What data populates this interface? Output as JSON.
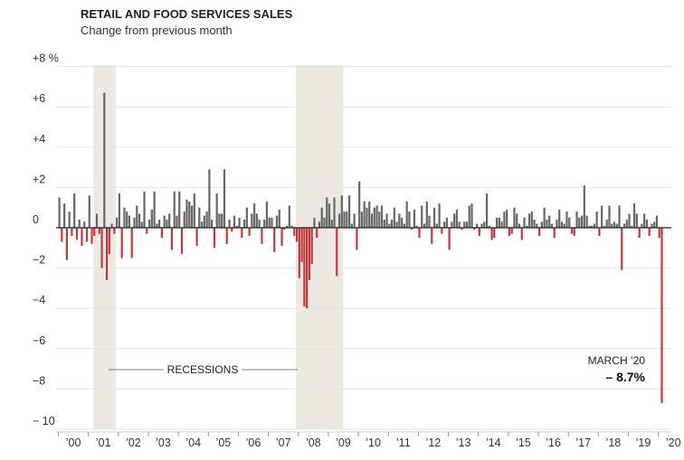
{
  "chart_data": {
    "type": "bar",
    "title": "RETAIL AND FOOD SERVICES SALES",
    "subtitle": "Change from previous month",
    "ylim": [
      -10,
      8
    ],
    "y_ticks": [
      {
        "value": 8,
        "label": "+8 %"
      },
      {
        "value": 6,
        "label": "+6"
      },
      {
        "value": 4,
        "label": "+4"
      },
      {
        "value": 2,
        "label": "+2"
      },
      {
        "value": 0,
        "label": "0"
      },
      {
        "value": -2,
        "label": "−2"
      },
      {
        "value": -4,
        "label": "−4"
      },
      {
        "value": -6,
        "label": "−6"
      },
      {
        "value": -8,
        "label": "−8"
      },
      {
        "value": -10,
        "label": "− 10"
      }
    ],
    "x_ticks": [
      {
        "year": 2000,
        "label": "’00"
      },
      {
        "year": 2001,
        "label": "’01"
      },
      {
        "year": 2002,
        "label": "’02"
      },
      {
        "year": 2003,
        "label": "’03"
      },
      {
        "year": 2004,
        "label": "’04"
      },
      {
        "year": 2005,
        "label": "’05"
      },
      {
        "year": 2006,
        "label": "’06"
      },
      {
        "year": 2007,
        "label": "’07"
      },
      {
        "year": 2008,
        "label": "’08"
      },
      {
        "year": 2009,
        "label": "’09"
      },
      {
        "year": 2010,
        "label": "’10"
      },
      {
        "year": 2011,
        "label": "’11"
      },
      {
        "year": 2012,
        "label": "’12"
      },
      {
        "year": 2013,
        "label": "’13"
      },
      {
        "year": 2014,
        "label": "’14"
      },
      {
        "year": 2015,
        "label": "’15"
      },
      {
        "year": 2016,
        "label": "’16"
      },
      {
        "year": 2017,
        "label": "’17"
      },
      {
        "year": 2018,
        "label": "’18"
      },
      {
        "year": 2019,
        "label": "’19"
      },
      {
        "year": 2020,
        "label": "’20"
      }
    ],
    "x_start": "2000-01",
    "recessions": [
      {
        "start": "2001-03",
        "end": "2001-11"
      },
      {
        "start": "2007-12",
        "end": "2009-06"
      }
    ],
    "recessions_label": "RECESSIONS",
    "annotation": {
      "label": "MARCH ’20",
      "value": "– 8.7%"
    },
    "colors": {
      "positive": "#666666",
      "negative": "#c0393f",
      "recession": "#ebe9e2",
      "grid": "#e6e6e6",
      "zero": "#222222"
    },
    "values": [
      1.5,
      -0.7,
      1.2,
      -1.6,
      0.8,
      -0.4,
      1.7,
      -0.6,
      0.4,
      -0.9,
      0.3,
      -0.7,
      1.6,
      -0.8,
      -0.4,
      0.7,
      -0.3,
      -2.0,
      6.7,
      -2.6,
      -1.3,
      0.2,
      -0.3,
      0.5,
      1.7,
      -1.5,
      1.0,
      0.8,
      0.6,
      -1.5,
      0.5,
      1.1,
      0.7,
      0.3,
      1.8,
      -0.3,
      0.4,
      0.9,
      1.8,
      0.2,
      0.4,
      -0.5,
      0.6,
      0.4,
      0.7,
      -1.1,
      1.8,
      0.6,
      1.8,
      -1.3,
      0.8,
      1.4,
      1.3,
      1.1,
      1.7,
      -0.9,
      1.0,
      0.3,
      0.6,
      0.8,
      2.9,
      0.4,
      -1.0,
      1.7,
      0.7,
      0.7,
      2.9,
      -0.8,
      0.4,
      -0.2,
      0.6,
      0.1,
      0.5,
      -0.5,
      0.4,
      1.0,
      -0.4,
      0.7,
      1.2,
      0.7,
      0.4,
      -0.8,
      0.4,
      1.3,
      0.5,
      0.5,
      -1.2,
      0.6,
      0.9,
      -0.9,
      -0.1,
      0.1,
      1.1,
      0.1,
      -0.4,
      -0.7,
      -2.5,
      -1.7,
      -3.9,
      -4.0,
      -2.6,
      -1.8,
      0.5,
      -0.5,
      0.3,
      1.0,
      0.5,
      1.5,
      1.2,
      0.4,
      1.5,
      -2.4,
      0.7,
      1.6,
      0.8,
      0.8,
      1.6,
      0.2,
      0.7,
      -1.1,
      2.3,
      0.8,
      1.3,
      1.0,
      1.3,
      0.7,
      1.0,
      1.1,
      0.8,
      1.1,
      0.4,
      0.7,
      0.2,
      0.4,
      1.0,
      0.3,
      0.7,
      0.5,
      0.2,
      1.3,
      0.8,
      -0.1,
      0.9,
      0.1,
      -0.5,
      1.1,
      0.2,
      1.3,
      0.6,
      -0.8,
      1.0,
      0.2,
      1.2,
      -0.3,
      0.3,
      0.5,
      -1.1,
      0.3,
      0.7,
      0.9,
      0.3,
      -0.1,
      0.3,
      0.3,
      1.1,
      1.2,
      -0.1,
      0.2,
      -0.4,
      0.2,
      0.3,
      1.7,
      0.1,
      -0.6,
      -0.5,
      0.5,
      0.5,
      0.3,
      0.8,
      0.9,
      -0.4,
      -0.3,
      1.0,
      0.7,
      0.2,
      -0.6,
      0.5,
      0.1,
      0.7,
      0.8,
      0.4,
      0.2,
      -0.4,
      0.3,
      1.0,
      0.4,
      0.6,
      0.2,
      -0.5,
      0.4,
      0.9,
      0.3,
      0.2,
      0.8,
      0.5,
      -0.3,
      -0.4,
      0.8,
      0.5,
      0.6,
      2.1,
      0.6,
      0.1,
      0.1,
      0.2,
      0.8,
      -0.4,
      1.1,
      0.1,
      0.4,
      1.1,
      0.2,
      0.3,
      0.2,
      1.1,
      -2.1,
      0.2,
      0.4,
      0.7,
      0.1,
      1.2,
      0.7,
      -0.5,
      0.2,
      0.7,
      0.4,
      -0.4,
      0.2,
      0.3,
      0.6,
      -0.5,
      -8.7
    ]
  }
}
